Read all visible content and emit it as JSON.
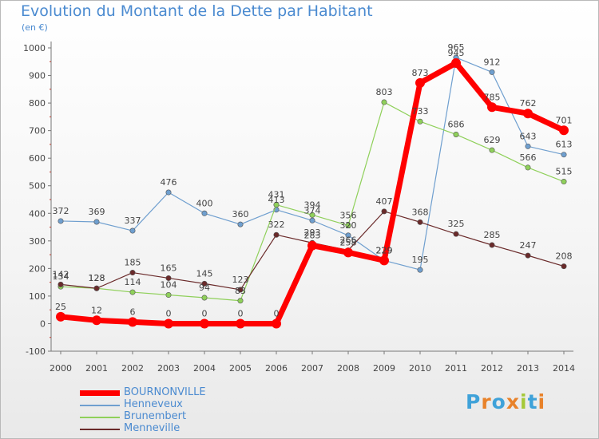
{
  "header": {
    "title": "Evolution du Montant de la Dette par Habitant",
    "subtitle": "(en €)"
  },
  "logo": {
    "letters": [
      "P",
      "r",
      "o",
      "x",
      "i",
      "t",
      "i"
    ],
    "colors": [
      "#3fa2d9",
      "#e8822a",
      "#3fa2d9",
      "#e8822a",
      "#a6c93a",
      "#3fa2d9",
      "#e8822a"
    ]
  },
  "chart_data": {
    "type": "line",
    "title": "Evolution du Montant de la Dette par Habitant",
    "subtitle": "(en €)",
    "xlabel": "",
    "ylabel": "",
    "x": [
      2000,
      2001,
      2002,
      2003,
      2004,
      2005,
      2006,
      2007,
      2008,
      2009,
      2010,
      2011,
      2012,
      2013,
      2014
    ],
    "ylim": [
      -100,
      1000
    ],
    "yticks": [
      -100,
      0,
      100,
      200,
      300,
      400,
      500,
      600,
      700,
      800,
      900,
      1000
    ],
    "grid": false,
    "legend_position": "bottom-left",
    "series": [
      {
        "name": "BOURNONVILLE",
        "color": "#ff0000",
        "values": [
          25,
          12,
          6,
          0,
          0,
          0,
          0,
          283,
          258,
          229,
          873,
          945,
          785,
          762,
          701
        ]
      },
      {
        "name": "Henneveux",
        "color": "#6f9fcf",
        "values": [
          372,
          369,
          337,
          476,
          400,
          360,
          413,
          374,
          320,
          229,
          195,
          965,
          912,
          643,
          613
        ]
      },
      {
        "name": "Brunembert",
        "color": "#8fd05a",
        "values": [
          134,
          128,
          114,
          104,
          94,
          83,
          431,
          394,
          356,
          803,
          733,
          686,
          629,
          566,
          515
        ]
      },
      {
        "name": "Menneville",
        "color": "#6a2a2a",
        "values": [
          142,
          128,
          185,
          165,
          145,
          123,
          322,
          293,
          266,
          407,
          368,
          325,
          285,
          247,
          208
        ]
      }
    ]
  }
}
